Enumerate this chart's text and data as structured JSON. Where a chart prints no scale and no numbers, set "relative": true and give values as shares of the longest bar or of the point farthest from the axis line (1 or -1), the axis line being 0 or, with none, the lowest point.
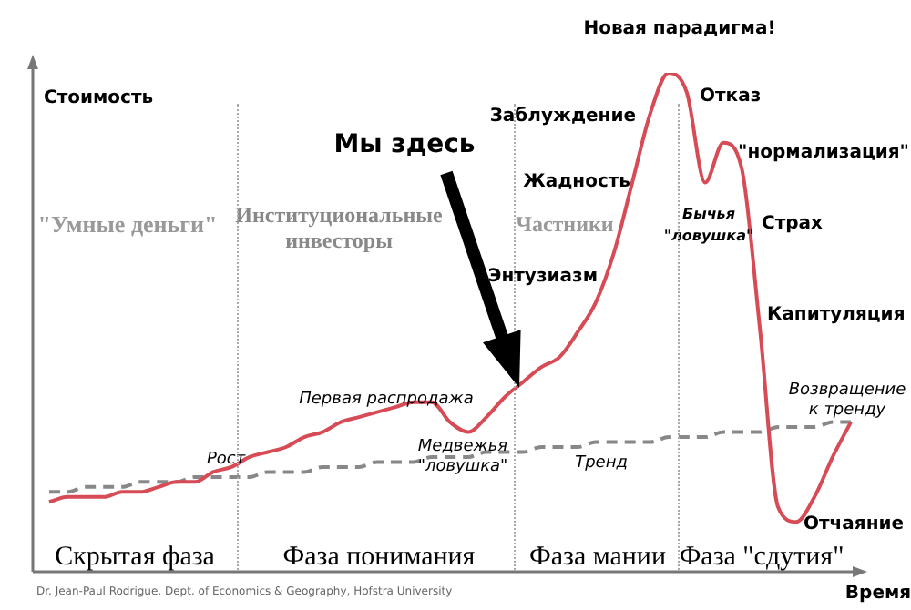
{
  "chart_data": {
    "type": "line",
    "relative": true,
    "xlabel": "Время",
    "ylabel": "Стоимость",
    "categories": [
      null,
      null,
      null,
      null,
      null,
      null,
      null,
      null,
      null,
      null,
      null,
      null,
      null,
      null,
      null,
      null,
      null,
      null,
      null,
      null,
      null,
      null,
      null,
      null,
      null,
      null,
      null,
      null,
      null,
      null,
      null,
      null,
      null,
      null,
      null,
      null,
      null,
      null,
      null,
      null,
      null,
      null,
      null,
      null,
      null
    ],
    "series": [
      {
        "color": "#d64b55",
        "values": [
          0.14,
          0.15,
          0.15,
          0.15,
          0.16,
          0.16,
          0.17,
          0.18,
          0.18,
          0.2,
          0.21,
          0.23,
          0.24,
          0.25,
          0.27,
          0.28,
          0.3,
          0.31,
          0.32,
          0.33,
          0.34,
          0.34,
          0.3,
          0.28,
          0.31,
          0.35,
          0.38,
          0.41,
          0.43,
          0.48,
          0.54,
          0.64,
          0.78,
          0.92,
          1,
          0.96,
          0.78,
          0.86,
          0.81,
          0.49,
          0.13,
          0.1,
          0.15,
          0.23,
          0.3
        ]
      },
      {
        "name": "Тренд",
        "color": "#888888",
        "line_style": "dashed",
        "values": [
          0.16,
          0.16,
          0.17,
          0.17,
          0.17,
          0.18,
          0.18,
          0.18,
          0.19,
          0.19,
          0.19,
          0.19,
          0.2,
          0.2,
          0.2,
          0.21,
          0.21,
          0.21,
          0.22,
          0.22,
          0.22,
          0.23,
          0.23,
          0.23,
          0.24,
          0.24,
          0.24,
          0.25,
          0.25,
          0.25,
          0.26,
          0.26,
          0.26,
          0.26,
          0.27,
          0.27,
          0.27,
          0.28,
          0.28,
          0.28,
          0.29,
          0.29,
          0.29,
          0.3,
          0.3
        ]
      }
    ],
    "annotations": [
      "Мы здесь",
      "\"Умные деньги\"",
      "Институциональные\nинвесторы",
      "Частники",
      "Новая парадигма!",
      "Заблуждение",
      "Отказ",
      "\"нормализация\"",
      "Жадность",
      "Бычья\n\"ловушка\"",
      "Страх",
      "Энтузиазм",
      "Капитуляция",
      "Первая распродажа",
      "Медвежья\n\"ловушка\"",
      "Рост",
      "Возвращение\nк тренду",
      "Отчаяние",
      "Скрытая фаза",
      "Фаза понимания",
      "Фаза мании",
      "Фаза \"сдутия\"",
      "Dr. Jean-Paul Rodrigue, Dept. of Economics & Geography, Hofstra University"
    ]
  }
}
